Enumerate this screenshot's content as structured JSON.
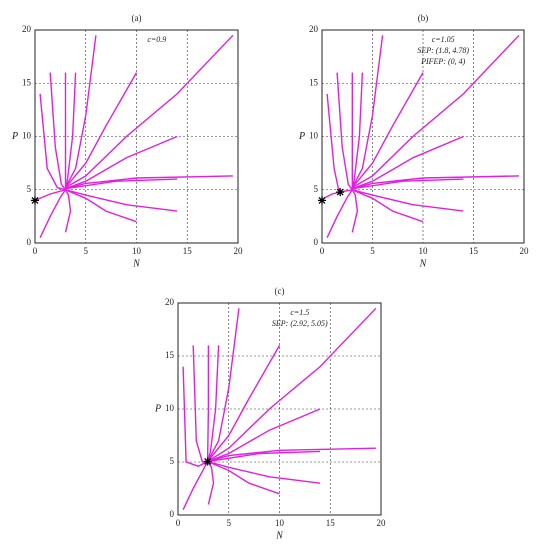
{
  "chart_data": [
    {
      "type": "line",
      "title": "(a)",
      "x_label": "N",
      "y_label": "P",
      "annotations": [
        "c=0.9"
      ],
      "xlim": [
        0,
        20
      ],
      "ylim": [
        0,
        20
      ],
      "xticks": [
        0,
        5,
        10,
        15,
        20
      ],
      "yticks": [
        0,
        5,
        10,
        15,
        20
      ],
      "grid": true,
      "color": "#e020e0",
      "points": {
        "x": [
          0
        ],
        "y": [
          4
        ]
      },
      "series": [
        {
          "x": [
            19.5,
            14,
            9,
            5,
            3
          ],
          "y": [
            19.5,
            14,
            10,
            6.3,
            5.2
          ]
        },
        {
          "x": [
            14,
            9,
            5,
            3
          ],
          "y": [
            10,
            8,
            5.8,
            5.1
          ]
        },
        {
          "x": [
            19.5,
            10,
            5,
            3
          ],
          "y": [
            6.3,
            6.1,
            5.6,
            5.1
          ]
        },
        {
          "x": [
            14,
            8,
            3
          ],
          "y": [
            6,
            5.8,
            5.1
          ]
        },
        {
          "x": [
            14,
            9,
            5,
            3
          ],
          "y": [
            3,
            3.6,
            4.5,
            5
          ]
        },
        {
          "x": [
            10,
            7,
            5,
            3
          ],
          "y": [
            2,
            3,
            4.2,
            5
          ]
        },
        {
          "x": [
            6,
            5,
            4,
            3
          ],
          "y": [
            19.5,
            12,
            7,
            5.2
          ]
        },
        {
          "x": [
            10,
            7,
            5,
            3
          ],
          "y": [
            16,
            11,
            7.5,
            5.2
          ]
        },
        {
          "x": [
            4,
            3.7,
            3.2,
            3
          ],
          "y": [
            16,
            10,
            6,
            5.1
          ]
        },
        {
          "x": [
            3,
            3,
            3
          ],
          "y": [
            16,
            10,
            5.1
          ]
        },
        {
          "x": [
            1.5,
            2,
            2.6,
            3
          ],
          "y": [
            16,
            9,
            5.5,
            5
          ]
        },
        {
          "x": [
            0.5,
            1.2,
            2.2,
            3
          ],
          "y": [
            14,
            7,
            5.2,
            5
          ]
        },
        {
          "x": [
            0.5,
            1.5,
            2.5,
            3
          ],
          "y": [
            0.5,
            2.5,
            4.3,
            5
          ]
        },
        {
          "x": [
            3,
            3.5,
            3.3,
            3
          ],
          "y": [
            1,
            3,
            4.5,
            5
          ]
        },
        {
          "x": [
            3,
            1.5,
            0
          ],
          "y": [
            5,
            4.6,
            4
          ]
        }
      ]
    },
    {
      "type": "line",
      "title": "(b)",
      "x_label": "N",
      "y_label": "P",
      "annotations": [
        "c=1.05",
        "SEP: (1.8, 4.78)",
        "PIFEP: (0, 4)"
      ],
      "xlim": [
        0,
        20
      ],
      "ylim": [
        0,
        20
      ],
      "xticks": [
        0,
        5,
        10,
        15,
        20
      ],
      "yticks": [
        0,
        5,
        10,
        15,
        20
      ],
      "grid": true,
      "color": "#e020e0",
      "points": {
        "x": [
          0,
          1.8
        ],
        "y": [
          4,
          4.78
        ]
      },
      "series": [
        {
          "x": [
            19.5,
            14,
            9,
            5,
            3
          ],
          "y": [
            19.5,
            14,
            10,
            6.3,
            5.2
          ]
        },
        {
          "x": [
            14,
            9,
            5,
            3
          ],
          "y": [
            10,
            8,
            5.8,
            5.1
          ]
        },
        {
          "x": [
            19.5,
            10,
            5,
            3
          ],
          "y": [
            6.3,
            6.1,
            5.6,
            5.1
          ]
        },
        {
          "x": [
            14,
            8,
            3
          ],
          "y": [
            6,
            5.8,
            5.1
          ]
        },
        {
          "x": [
            14,
            9,
            5,
            3
          ],
          "y": [
            3,
            3.6,
            4.5,
            5
          ]
        },
        {
          "x": [
            10,
            7,
            5,
            3
          ],
          "y": [
            2,
            3,
            4.2,
            5
          ]
        },
        {
          "x": [
            6,
            5,
            4,
            3
          ],
          "y": [
            19.5,
            12,
            7,
            5.2
          ]
        },
        {
          "x": [
            10,
            7,
            5,
            3
          ],
          "y": [
            16,
            11,
            7.5,
            5.2
          ]
        },
        {
          "x": [
            4,
            3.7,
            3.2,
            3
          ],
          "y": [
            16,
            10,
            6,
            5.1
          ]
        },
        {
          "x": [
            3,
            3,
            3
          ],
          "y": [
            16,
            10,
            5.1
          ]
        },
        {
          "x": [
            1.5,
            2,
            2.6,
            3
          ],
          "y": [
            16,
            9,
            5.5,
            5
          ]
        },
        {
          "x": [
            0.5,
            1.2,
            1.6,
            1.8
          ],
          "y": [
            14,
            7,
            5.2,
            4.78
          ]
        },
        {
          "x": [
            0.5,
            1.5,
            2.5,
            3
          ],
          "y": [
            0.5,
            2.5,
            4.3,
            5
          ]
        },
        {
          "x": [
            3,
            3.5,
            3.3,
            3
          ],
          "y": [
            1,
            3,
            4.5,
            5
          ]
        },
        {
          "x": [
            3,
            1.8
          ],
          "y": [
            5,
            4.78
          ]
        },
        {
          "x": [
            1.8,
            1,
            0.2
          ],
          "y": [
            4.78,
            4.6,
            4.2
          ]
        }
      ]
    },
    {
      "type": "line",
      "title": "(c)",
      "x_label": "N",
      "y_label": "P",
      "annotations": [
        "c=1.5",
        "SEP: (2.92, 5.05)"
      ],
      "xlim": [
        0,
        20
      ],
      "ylim": [
        0,
        20
      ],
      "xticks": [
        0,
        5,
        10,
        15,
        20
      ],
      "yticks": [
        0,
        5,
        10,
        15,
        20
      ],
      "grid": true,
      "color": "#e020e0",
      "points": {
        "x": [
          2.92
        ],
        "y": [
          5.05
        ]
      },
      "series": [
        {
          "x": [
            19.5,
            14,
            9,
            5,
            2.92
          ],
          "y": [
            19.5,
            14,
            10,
            6.3,
            5.05
          ]
        },
        {
          "x": [
            14,
            9,
            5,
            2.92
          ],
          "y": [
            10,
            8,
            5.8,
            5.05
          ]
        },
        {
          "x": [
            19.5,
            10,
            5,
            2.92
          ],
          "y": [
            6.3,
            6.1,
            5.6,
            5.05
          ]
        },
        {
          "x": [
            14,
            8,
            2.92
          ],
          "y": [
            6,
            5.8,
            5.05
          ]
        },
        {
          "x": [
            14,
            9,
            5,
            2.92
          ],
          "y": [
            3,
            3.6,
            4.5,
            5.05
          ]
        },
        {
          "x": [
            10,
            7,
            5,
            2.92
          ],
          "y": [
            2,
            3,
            4.2,
            5.05
          ]
        },
        {
          "x": [
            6,
            5,
            4,
            2.92
          ],
          "y": [
            19.5,
            12,
            7,
            5.05
          ]
        },
        {
          "x": [
            10,
            7,
            5,
            2.92
          ],
          "y": [
            16,
            11,
            7.5,
            5.05
          ]
        },
        {
          "x": [
            4,
            3.7,
            3.2,
            2.92
          ],
          "y": [
            16,
            10,
            6,
            5.05
          ]
        },
        {
          "x": [
            3,
            3,
            2.92
          ],
          "y": [
            16,
            10,
            5.05
          ]
        },
        {
          "x": [
            1.5,
            1.8,
            2.4,
            2.92
          ],
          "y": [
            16,
            7,
            5,
            5.05
          ]
        },
        {
          "x": [
            0.5,
            0.8,
            2,
            2.92
          ],
          "y": [
            14,
            5,
            4.6,
            5.05
          ]
        },
        {
          "x": [
            0.5,
            1.5,
            2.5,
            2.92
          ],
          "y": [
            0.5,
            2.5,
            4.3,
            5.05
          ]
        },
        {
          "x": [
            3,
            3.5,
            3.3,
            2.92
          ],
          "y": [
            1,
            3,
            4.5,
            5.05
          ]
        }
      ]
    }
  ]
}
